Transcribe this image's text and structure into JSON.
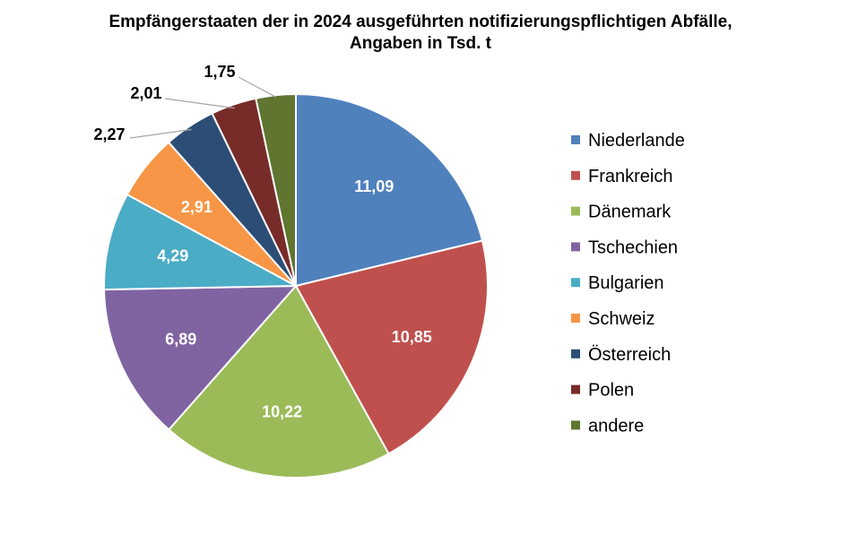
{
  "chart_data": {
    "type": "pie",
    "title": "Empfängerstaaten der in 2024 ausgeführten notifizierungspflichtigen Abfälle,",
    "subtitle": "Angaben in Tsd. t",
    "start": "top, clockwise",
    "legend_position": "right",
    "slices": [
      {
        "label": "Niederlande",
        "value": 11.09,
        "display": "11,09",
        "color": "#4F81BD",
        "label_inside": true
      },
      {
        "label": "Frankreich",
        "value": 10.85,
        "display": "10,85",
        "color": "#C0504D",
        "label_inside": true
      },
      {
        "label": "Dänemark",
        "value": 10.22,
        "display": "10,22",
        "color": "#9BBB59",
        "label_inside": true
      },
      {
        "label": "Tschechien",
        "value": 6.89,
        "display": "6,89",
        "color": "#8064A2",
        "label_inside": true
      },
      {
        "label": "Bulgarien",
        "value": 4.29,
        "display": "4,29",
        "color": "#4BACC6",
        "label_inside": true
      },
      {
        "label": "Schweiz",
        "value": 2.91,
        "display": "2,91",
        "color": "#F79646",
        "label_inside": true
      },
      {
        "label": "Österreich",
        "value": 2.27,
        "display": "2,27",
        "color": "#2C4D75",
        "label_inside": false
      },
      {
        "label": "Polen",
        "value": 2.01,
        "display": "2,01",
        "color": "#772C2A",
        "label_inside": false
      },
      {
        "label": "andere",
        "value": 1.75,
        "display": "1,75",
        "color": "#5F7530",
        "label_inside": false
      }
    ]
  }
}
